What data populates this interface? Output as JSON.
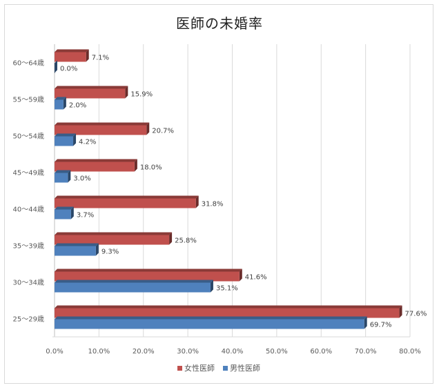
{
  "chart_data": {
    "type": "bar",
    "orientation": "horizontal",
    "title": "医師の未婚率",
    "categories": [
      "25〜29歳",
      "30〜34歳",
      "35〜39歳",
      "40〜44歳",
      "45〜49歳",
      "50〜54歳",
      "55〜59歳",
      "60〜64歳"
    ],
    "series": [
      {
        "name": "女性医師",
        "color": "#c0504d",
        "values": [
          77.6,
          41.6,
          25.8,
          31.8,
          18.0,
          20.7,
          15.9,
          7.1
        ],
        "labels": [
          "77.6%",
          "41.6%",
          "25.8%",
          "31.8%",
          "18.0%",
          "20.7%",
          "15.9%",
          "7.1%"
        ]
      },
      {
        "name": "男性医師",
        "color": "#4f81bd",
        "values": [
          69.7,
          35.1,
          9.3,
          3.7,
          3.0,
          4.2,
          2.0,
          0.0
        ],
        "labels": [
          "69.7%",
          "35.1%",
          "9.3%",
          "3.7%",
          "3.0%",
          "4.2%",
          "2.0%",
          "0.0%"
        ]
      }
    ],
    "xlim": [
      0,
      80
    ],
    "xticks": [
      0,
      10,
      20,
      30,
      40,
      50,
      60,
      70,
      80
    ],
    "xtick_labels": [
      "0.0%",
      "10.0%",
      "20.0%",
      "30.0%",
      "40.0%",
      "50.0%",
      "60.0%",
      "70.0%",
      "80.0%"
    ],
    "grid": true,
    "legend_position": "bottom",
    "legend_order": [
      "女性医師",
      "男性医師"
    ],
    "style": "3d-clustered-bar"
  }
}
